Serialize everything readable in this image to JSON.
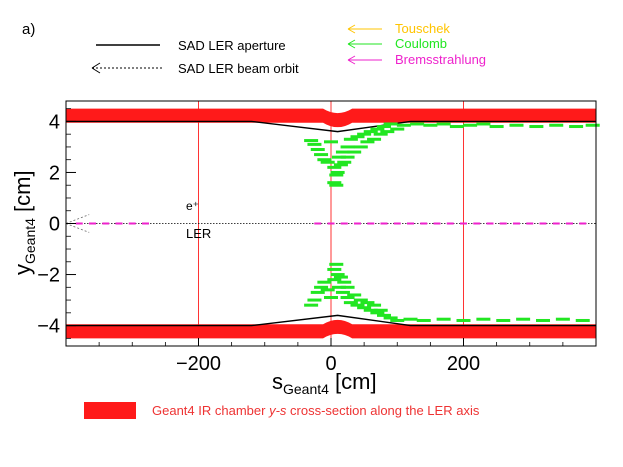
{
  "panel_label": "a)",
  "legend": {
    "aperture": "SAD LER aperture",
    "orbit": "SAD LER beam orbit",
    "touschek": "Touschek",
    "coulomb": "Coulomb",
    "brems": "Bremsstrahlung",
    "chamber_prefix": "Geant4 IR chamber ",
    "chamber_italic": "y-s",
    "chamber_suffix": " cross-section along the LER axis"
  },
  "annotations": {
    "beam": "e⁺",
    "ring": "LER"
  },
  "axes": {
    "x_main": "s",
    "x_sub": "Geant4",
    "x_unit": " [cm]",
    "y_main": "y",
    "y_sub": "Geant4",
    "y_unit": " [cm]"
  },
  "colors": {
    "chamber": "#ff1a1a",
    "coulomb": "#22e622",
    "touschek": "#ffc400",
    "brems": "#ee22cc",
    "grid": "#ff3333",
    "chamber_text": "#ee3333"
  },
  "chart_data": {
    "type": "scatter",
    "title": "",
    "xlabel": "s_Geant4 [cm]",
    "ylabel": "y_Geant4 [cm]",
    "xlim": [
      -400,
      400
    ],
    "ylim": [
      -4.8,
      4.8
    ],
    "xticks": [
      -200,
      0,
      200
    ],
    "yticks": [
      -4,
      -2,
      0,
      2,
      4
    ],
    "x_tick_labels": [
      "−200",
      "0",
      "200"
    ],
    "y_tick_labels": [
      "−4",
      "−2",
      "0",
      "2",
      "4"
    ],
    "grid": "x only",
    "chamber": {
      "outer_half_height": 4.5,
      "inner_half_height_nominal": 3.95,
      "narrowing_center_s": 10,
      "narrowing_half_width_s": 22,
      "narrowing_depth": 0.35
    },
    "aperture_line": {
      "s": [
        -400,
        -120,
        10,
        120,
        400
      ],
      "y": [
        4.0,
        4.0,
        3.6,
        4.0,
        4.0
      ]
    },
    "orbit": {
      "y": 0,
      "s_start": -400,
      "s_end": 400
    },
    "series": [
      {
        "name": "Coulomb",
        "points": [
          {
            "s": -30,
            "y": 3.25
          },
          {
            "s": -25,
            "y": 3.1
          },
          {
            "s": -20,
            "y": 2.9
          },
          {
            "s": -15,
            "y": 2.7
          },
          {
            "s": -10,
            "y": 2.5
          },
          {
            "s": -5,
            "y": 2.4
          },
          {
            "s": 0,
            "y": 3.2
          },
          {
            "s": 5,
            "y": 2.2
          },
          {
            "s": 5,
            "y": 1.6
          },
          {
            "s": 8,
            "y": 1.9
          },
          {
            "s": 8,
            "y": 1.5
          },
          {
            "s": 10,
            "y": 2.0
          },
          {
            "s": 12,
            "y": 2.6
          },
          {
            "s": 15,
            "y": 2.3
          },
          {
            "s": 18,
            "y": 2.8
          },
          {
            "s": 20,
            "y": 2.4
          },
          {
            "s": 25,
            "y": 3.0
          },
          {
            "s": 25,
            "y": 2.6
          },
          {
            "s": 30,
            "y": 3.3
          },
          {
            "s": 35,
            "y": 2.8
          },
          {
            "s": 40,
            "y": 3.4
          },
          {
            "s": 45,
            "y": 3.0
          },
          {
            "s": 50,
            "y": 3.5
          },
          {
            "s": 55,
            "y": 3.2
          },
          {
            "s": 60,
            "y": 3.6
          },
          {
            "s": 65,
            "y": 3.3
          },
          {
            "s": 70,
            "y": 3.7
          },
          {
            "s": 75,
            "y": 3.5
          },
          {
            "s": 80,
            "y": 3.8
          },
          {
            "s": 85,
            "y": 3.6
          },
          {
            "s": 90,
            "y": 3.9
          },
          {
            "s": 100,
            "y": 3.7
          },
          {
            "s": 110,
            "y": 3.85
          },
          {
            "s": 130,
            "y": 3.9
          },
          {
            "s": 150,
            "y": 3.85
          },
          {
            "s": 170,
            "y": 3.9
          },
          {
            "s": 190,
            "y": 3.8
          },
          {
            "s": 210,
            "y": 3.85
          },
          {
            "s": 230,
            "y": 3.9
          },
          {
            "s": 250,
            "y": 3.8
          },
          {
            "s": 280,
            "y": 3.85
          },
          {
            "s": 310,
            "y": 3.8
          },
          {
            "s": 340,
            "y": 3.85
          },
          {
            "s": 370,
            "y": 3.8
          },
          {
            "s": 395,
            "y": 3.85
          },
          {
            "s": -30,
            "y": -3.2
          },
          {
            "s": -25,
            "y": -3.0
          },
          {
            "s": -20,
            "y": -2.7
          },
          {
            "s": -15,
            "y": -2.5
          },
          {
            "s": -10,
            "y": -2.3
          },
          {
            "s": -5,
            "y": -2.6
          },
          {
            "s": 0,
            "y": -2.9
          },
          {
            "s": 5,
            "y": -1.8
          },
          {
            "s": 5,
            "y": -2.2
          },
          {
            "s": 8,
            "y": -1.6
          },
          {
            "s": 10,
            "y": -2.0
          },
          {
            "s": 12,
            "y": -2.5
          },
          {
            "s": 15,
            "y": -2.1
          },
          {
            "s": 18,
            "y": -2.7
          },
          {
            "s": 20,
            "y": -2.3
          },
          {
            "s": 25,
            "y": -2.9
          },
          {
            "s": 25,
            "y": -2.5
          },
          {
            "s": 30,
            "y": -3.1
          },
          {
            "s": 35,
            "y": -2.8
          },
          {
            "s": 40,
            "y": -3.2
          },
          {
            "s": 45,
            "y": -3.0
          },
          {
            "s": 50,
            "y": -3.3
          },
          {
            "s": 55,
            "y": -3.1
          },
          {
            "s": 60,
            "y": -3.4
          },
          {
            "s": 65,
            "y": -3.2
          },
          {
            "s": 70,
            "y": -3.5
          },
          {
            "s": 75,
            "y": -3.4
          },
          {
            "s": 80,
            "y": -3.6
          },
          {
            "s": 90,
            "y": -3.7
          },
          {
            "s": 100,
            "y": -3.8
          },
          {
            "s": 120,
            "y": -3.75
          },
          {
            "s": 140,
            "y": -3.8
          },
          {
            "s": 170,
            "y": -3.75
          },
          {
            "s": 200,
            "y": -3.8
          },
          {
            "s": 230,
            "y": -3.75
          },
          {
            "s": 260,
            "y": -3.8
          },
          {
            "s": 290,
            "y": -3.75
          },
          {
            "s": 320,
            "y": -3.8
          },
          {
            "s": 350,
            "y": -3.75
          },
          {
            "s": 380,
            "y": -3.8
          }
        ]
      },
      {
        "name": "Bremsstrahlung",
        "points": [
          {
            "s": -380,
            "y": 0
          },
          {
            "s": -360,
            "y": 0
          },
          {
            "s": -340,
            "y": 0
          },
          {
            "s": -320,
            "y": 0
          },
          {
            "s": -300,
            "y": 0
          },
          {
            "s": -280,
            "y": 0
          },
          {
            "s": -20,
            "y": 0
          },
          {
            "s": 0,
            "y": 0
          },
          {
            "s": 20,
            "y": 0
          },
          {
            "s": 40,
            "y": 0
          },
          {
            "s": 60,
            "y": 0
          },
          {
            "s": 80,
            "y": 0
          },
          {
            "s": 100,
            "y": 0
          },
          {
            "s": 120,
            "y": 0
          },
          {
            "s": 140,
            "y": 0
          },
          {
            "s": 160,
            "y": 0
          },
          {
            "s": 180,
            "y": 0
          },
          {
            "s": 200,
            "y": 0
          },
          {
            "s": 220,
            "y": 0
          },
          {
            "s": 240,
            "y": 0
          },
          {
            "s": 260,
            "y": 0
          },
          {
            "s": 280,
            "y": 0
          },
          {
            "s": 300,
            "y": 0
          },
          {
            "s": 320,
            "y": 0
          },
          {
            "s": 340,
            "y": 0
          },
          {
            "s": 360,
            "y": 0
          },
          {
            "s": 380,
            "y": 0
          }
        ]
      },
      {
        "name": "Touschek",
        "points": []
      }
    ]
  }
}
